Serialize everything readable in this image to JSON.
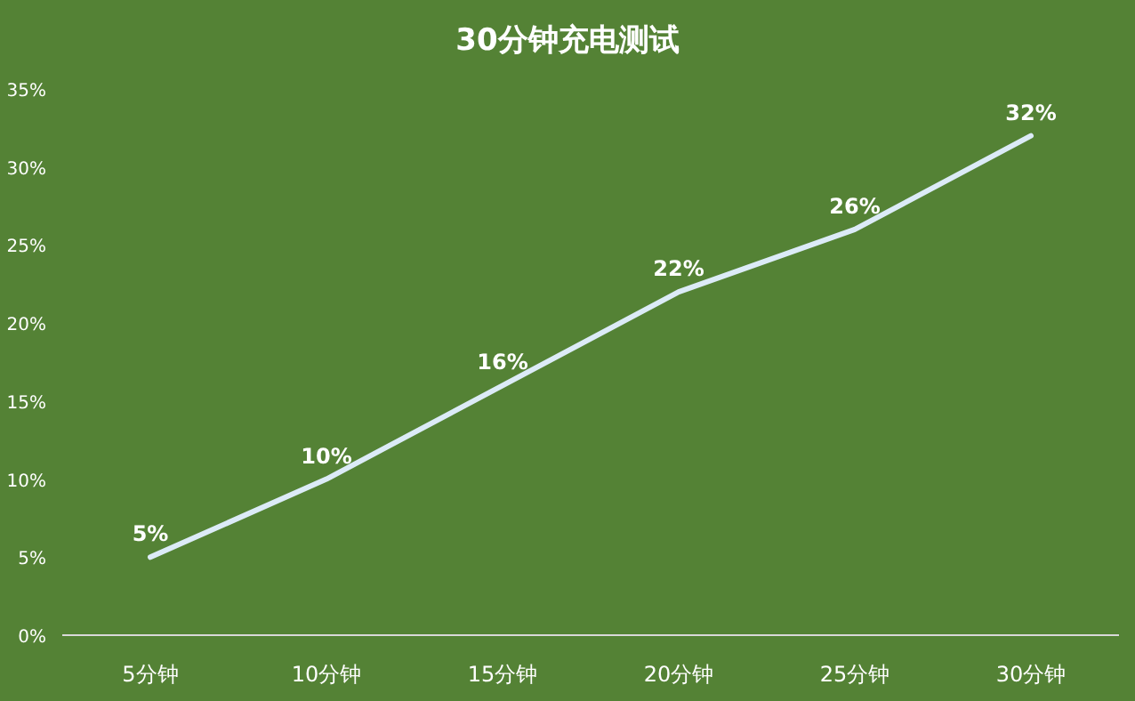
{
  "chart_data": {
    "type": "line",
    "title": "30分钟充电测试",
    "categories": [
      "5分钟",
      "10分钟",
      "15分钟",
      "20分钟",
      "25分钟",
      "30分钟"
    ],
    "series": [
      {
        "color": "#dcebf7",
        "values": [
          5,
          10,
          16,
          22,
          26,
          32
        ],
        "value_labels": [
          "5%",
          "10%",
          "16%",
          "22%",
          "26%",
          "32%"
        ]
      }
    ],
    "ylim": [
      0,
      35
    ],
    "yticks": [
      {
        "value": 0,
        "label": "0%"
      },
      {
        "value": 5,
        "label": "5%"
      },
      {
        "value": 10,
        "label": "10%"
      },
      {
        "value": 15,
        "label": "15%"
      },
      {
        "value": 20,
        "label": "20%"
      },
      {
        "value": 25,
        "label": "25%"
      },
      {
        "value": 30,
        "label": "30%"
      },
      {
        "value": 35,
        "label": "35%"
      }
    ],
    "grid": false,
    "marker": "none",
    "line_style": "solid"
  }
}
